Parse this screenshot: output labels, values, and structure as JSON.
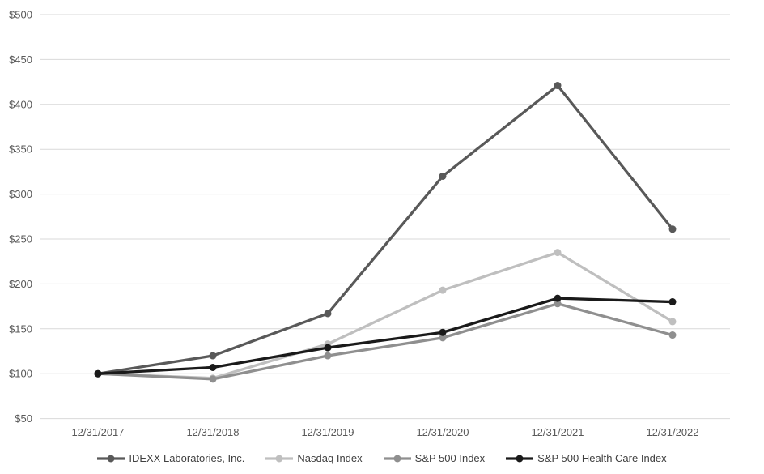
{
  "chart_data": {
    "type": "line",
    "x_categories": [
      "12/31/2017",
      "12/31/2018",
      "12/31/2019",
      "12/31/2020",
      "12/31/2021",
      "12/31/2022"
    ],
    "y_axis": {
      "min": 50,
      "max": 500,
      "step": 50,
      "tick_format": "$",
      "tick_labels": [
        "$50",
        "$100",
        "$150",
        "$200",
        "$250",
        "$300",
        "$350",
        "$400",
        "$450",
        "$500"
      ]
    },
    "grid": true,
    "legend_position": "bottom",
    "series": [
      {
        "name": "IDEXX Laboratories, Inc.",
        "color": "#595959",
        "values": [
          100,
          120,
          167,
          320,
          421,
          261
        ]
      },
      {
        "name": "Nasdaq Index",
        "color": "#bfbfbf",
        "values": [
          100,
          95,
          133,
          193,
          235,
          158
        ]
      },
      {
        "name": "S&P 500 Index",
        "color": "#8f8f8f",
        "values": [
          100,
          94,
          120,
          140,
          178,
          143
        ]
      },
      {
        "name": "S&P 500 Health Care Index",
        "color": "#1a1a1a",
        "values": [
          100,
          107,
          129,
          146,
          184,
          180
        ]
      }
    ]
  },
  "colors": {
    "background": "#ffffff",
    "gridline": "#d9d9d9",
    "axis_label": "#595959"
  }
}
